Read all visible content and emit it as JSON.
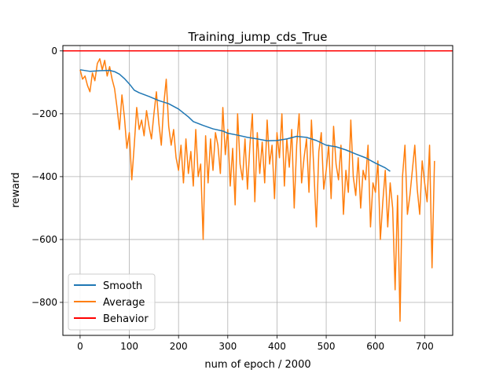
{
  "chart_data": {
    "type": "line",
    "title": "Training_jump_cds_True",
    "xlabel": "num of epoch / 2000",
    "ylabel": "reward",
    "xlim": [
      -35,
      757
    ],
    "ylim": [
      -905,
      17
    ],
    "xticks": [
      0,
      100,
      200,
      300,
      400,
      500,
      600,
      700
    ],
    "yticks": [
      0,
      -200,
      -400,
      -600,
      -800
    ],
    "grid": true,
    "legend": {
      "placement": "lower-left"
    },
    "series": [
      {
        "name": "Smooth",
        "color": "#1f77b4",
        "x": [
          0,
          20,
          40,
          60,
          70,
          80,
          90,
          100,
          110,
          120,
          140,
          160,
          180,
          200,
          220,
          230,
          250,
          270,
          290,
          300,
          320,
          340,
          360,
          380,
          400,
          420,
          440,
          460,
          480,
          500,
          520,
          540,
          560,
          580,
          600,
          620,
          630
        ],
        "values": [
          -60,
          -65,
          -63,
          -62,
          -66,
          -74,
          -88,
          -105,
          -125,
          -133,
          -145,
          -158,
          -168,
          -185,
          -210,
          -225,
          -237,
          -248,
          -255,
          -262,
          -268,
          -275,
          -280,
          -286,
          -285,
          -280,
          -272,
          -275,
          -285,
          -300,
          -305,
          -315,
          -328,
          -340,
          -357,
          -372,
          -383
        ]
      },
      {
        "name": "Average",
        "color": "#ff7f0e",
        "x": [
          0,
          5,
          10,
          15,
          20,
          25,
          30,
          35,
          40,
          45,
          50,
          55,
          60,
          65,
          70,
          75,
          80,
          85,
          90,
          95,
          100,
          105,
          110,
          115,
          120,
          125,
          130,
          135,
          140,
          145,
          150,
          155,
          160,
          165,
          170,
          175,
          180,
          185,
          190,
          195,
          200,
          205,
          210,
          215,
          220,
          225,
          230,
          235,
          240,
          245,
          250,
          255,
          260,
          265,
          270,
          275,
          280,
          285,
          290,
          295,
          300,
          305,
          310,
          315,
          320,
          325,
          330,
          335,
          340,
          345,
          350,
          355,
          360,
          365,
          370,
          375,
          380,
          385,
          390,
          395,
          400,
          405,
          410,
          415,
          420,
          425,
          430,
          435,
          440,
          445,
          450,
          455,
          460,
          465,
          470,
          475,
          480,
          485,
          490,
          495,
          500,
          505,
          510,
          515,
          520,
          525,
          530,
          535,
          540,
          545,
          550,
          555,
          560,
          565,
          570,
          575,
          580,
          585,
          590,
          595,
          600,
          605,
          610,
          615,
          620,
          625,
          630,
          635,
          640,
          645,
          650,
          655,
          660,
          665,
          670,
          675,
          680,
          685,
          690,
          695,
          700,
          705,
          710,
          715,
          720
        ],
        "values": [
          -60,
          -90,
          -80,
          -110,
          -130,
          -70,
          -95,
          -40,
          -25,
          -60,
          -30,
          -80,
          -50,
          -90,
          -120,
          -180,
          -250,
          -140,
          -210,
          -310,
          -260,
          -410,
          -300,
          -180,
          -250,
          -220,
          -270,
          -190,
          -240,
          -280,
          -200,
          -130,
          -230,
          -300,
          -170,
          -90,
          -240,
          -300,
          -250,
          -340,
          -380,
          -300,
          -420,
          -280,
          -390,
          -320,
          -430,
          -250,
          -400,
          -360,
          -600,
          -270,
          -420,
          -280,
          -380,
          -260,
          -300,
          -390,
          -180,
          -330,
          -250,
          -430,
          -310,
          -490,
          -200,
          -360,
          -410,
          -280,
          -440,
          -300,
          -200,
          -480,
          -260,
          -390,
          -290,
          -420,
          -220,
          -360,
          -300,
          -470,
          -260,
          -340,
          -200,
          -430,
          -280,
          -370,
          -250,
          -500,
          -300,
          -200,
          -420,
          -340,
          -280,
          -450,
          -220,
          -380,
          -560,
          -320,
          -260,
          -440,
          -380,
          -300,
          -470,
          -240,
          -360,
          -410,
          -300,
          -520,
          -380,
          -450,
          -220,
          -400,
          -460,
          -340,
          -500,
          -380,
          -410,
          -300,
          -560,
          -420,
          -450,
          -350,
          -600,
          -480,
          -380,
          -560,
          -420,
          -500,
          -760,
          -460,
          -860,
          -400,
          -300,
          -520,
          -460,
          -380,
          -300,
          -440,
          -520,
          -350,
          -420,
          -480,
          -300,
          -690,
          -350
        ]
      },
      {
        "name": "Behavior",
        "color": "#ff0000",
        "x": [
          -35,
          757
        ],
        "values": [
          0,
          0
        ]
      }
    ]
  }
}
